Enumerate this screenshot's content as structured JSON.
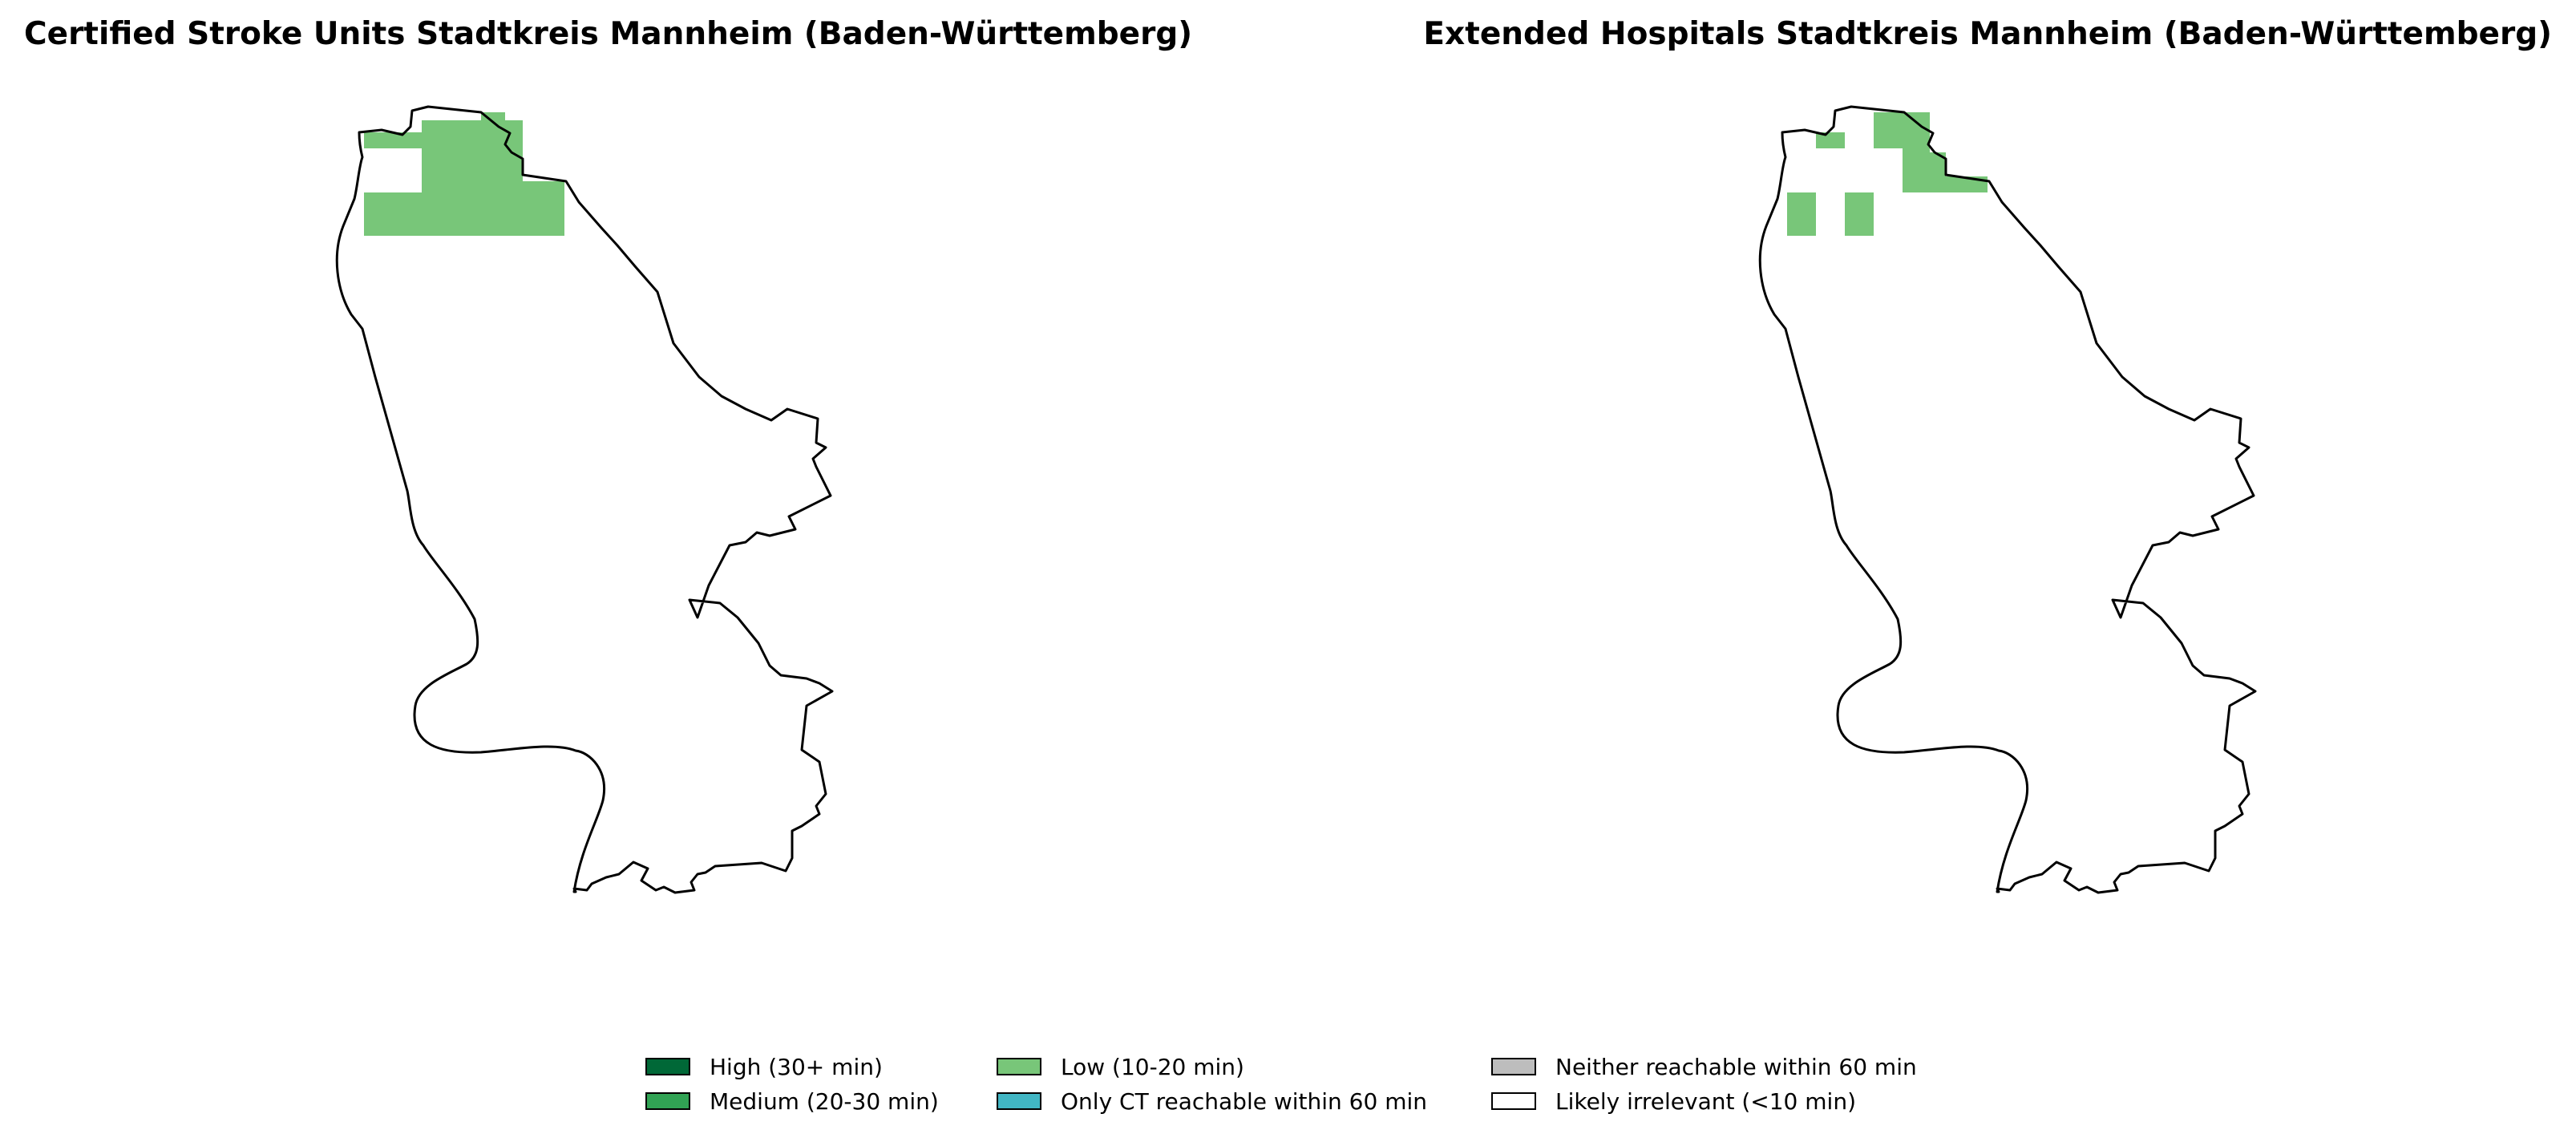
{
  "panels": [
    {
      "title": "Certified Stroke Units Stadtkreis Mannheim (Baden-Württemberg)",
      "cells": [
        {
          "category": "low",
          "region": "north-cluster-main"
        },
        {
          "category": "irrelevant",
          "region": "north-gap"
        }
      ]
    },
    {
      "title": "Extended Hospitals Stadtkreis Mannheim (Baden-Württemberg)",
      "cells": [
        {
          "category": "low",
          "region": "north-scattered"
        }
      ]
    }
  ],
  "legend": {
    "items": [
      {
        "key": "high",
        "label": "High (30+ min)",
        "color": "#006837"
      },
      {
        "key": "medium",
        "label": "Medium (20-30 min)",
        "color": "#31a354"
      },
      {
        "key": "low",
        "label": "Low (10-20 min)",
        "color": "#78c679"
      },
      {
        "key": "ct_only",
        "label": "Only CT reachable within 60 min",
        "color": "#41b6c4"
      },
      {
        "key": "neither",
        "label": "Neither reachable within 60 min",
        "color": "#bdbdbd"
      },
      {
        "key": "irrelevant",
        "label": "Likely irrelevant (<10 min)",
        "color": "#ffffff"
      }
    ]
  },
  "colors": {
    "boundary": "#000000",
    "background": "#ffffff"
  }
}
